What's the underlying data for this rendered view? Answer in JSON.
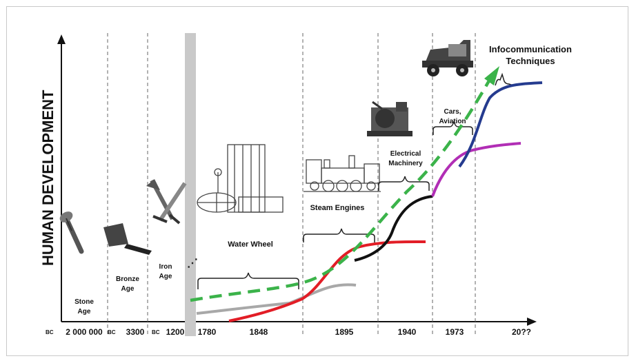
{
  "y_axis_label": "HUMAN DEVELOPMENT",
  "eras": [
    {
      "lines": [
        "Stone",
        "Age"
      ]
    },
    {
      "lines": [
        "Bronze",
        "Age"
      ]
    },
    {
      "lines": [
        "Iron",
        "Age"
      ]
    },
    {
      "lines": [
        "Water Wheel"
      ]
    },
    {
      "lines": [
        "Steam Engines"
      ]
    },
    {
      "lines": [
        "Electrical",
        "Machinery"
      ]
    },
    {
      "lines": [
        "Cars,",
        "Aviation"
      ]
    },
    {
      "lines": [
        "Infocommunication",
        "Techniques"
      ]
    }
  ],
  "x_ticks": [
    {
      "prefix": "BC",
      "label": "2 000 000"
    },
    {
      "prefix": "BC",
      "label": "3300"
    },
    {
      "prefix": "BC",
      "label": "1200"
    },
    {
      "prefix": "",
      "label": "1780"
    },
    {
      "prefix": "",
      "label": "1848"
    },
    {
      "prefix": "",
      "label": "1895"
    },
    {
      "prefix": "",
      "label": "1940"
    },
    {
      "prefix": "",
      "label": "1973"
    },
    {
      "prefix": "",
      "label": "20??"
    }
  ],
  "colors": {
    "trend": "#3bb34a",
    "water": "#a8a8a8",
    "steam": "#e21d26",
    "electric": "#111111",
    "cars": "#b12eb5",
    "info": "#253b8f",
    "grid": "#666666"
  },
  "icons": [
    "stone-axe-icon",
    "bronze-axe-icon",
    "iron-swords-icon",
    "water-wheel-icon",
    "steam-locomotive-icon",
    "electric-machine-icon",
    "vintage-car-icon"
  ]
}
